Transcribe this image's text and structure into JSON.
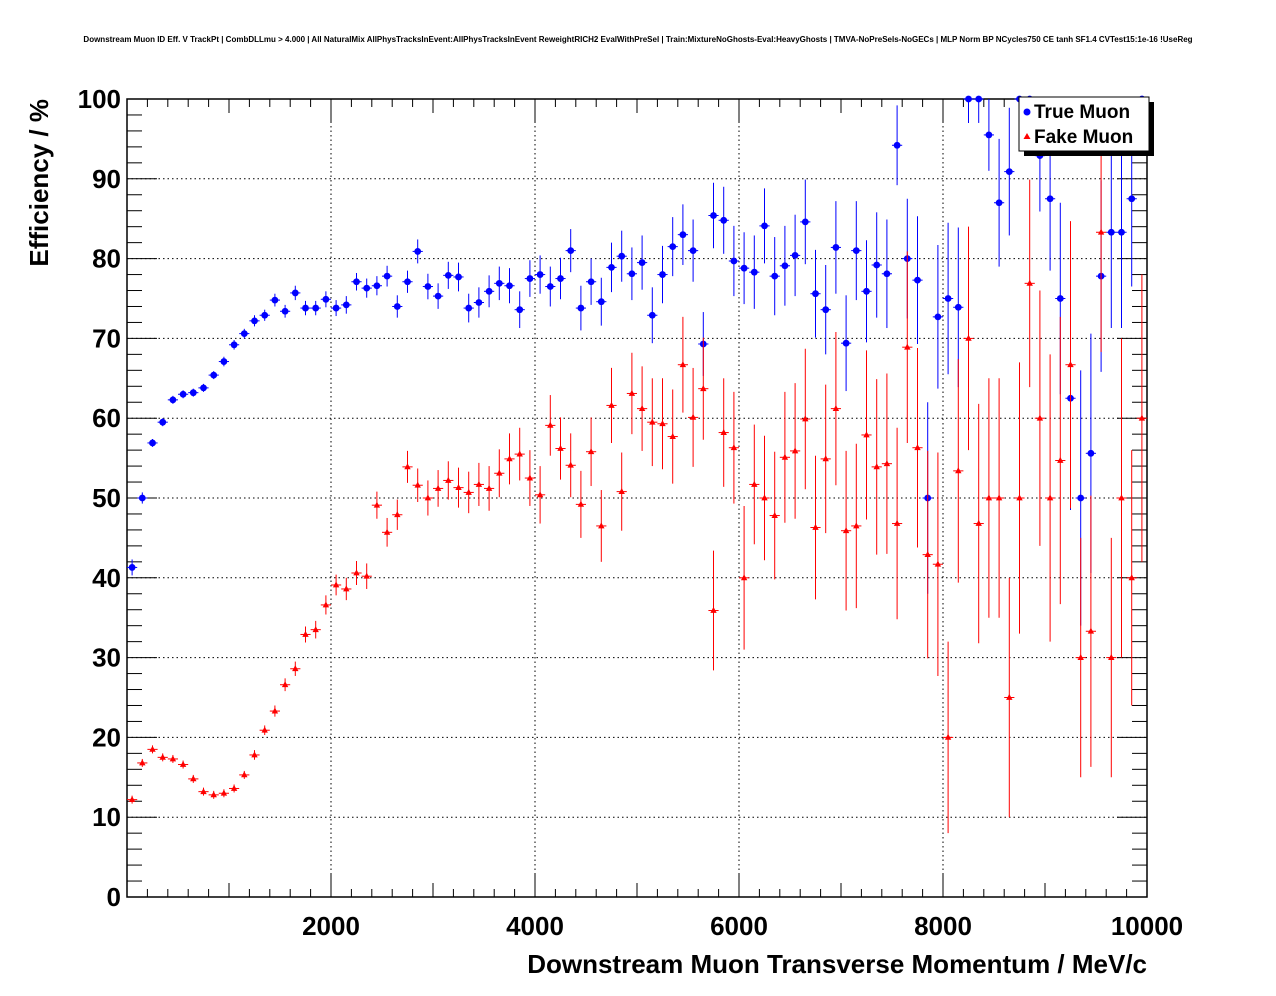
{
  "chart_data": {
    "type": "scatter",
    "title": "Downstream Muon ID Eff. V TrackPt | CombDLLmu > 4.000 | All NaturalMix AllPhysTracksInEvent:AllPhysTracksInEvent ReweightRICH2 EvalWithPreSel | Train:MixtureNoGhosts-Eval:HeavyGhosts | TMVA-NoPreSels-NoGECs | MLP Norm BP NCycles750 CE tanh SF1.4 CVTest15:1e-16 !UseReg",
    "xlabel": "Downstream Muon Transverse Momentum / MeV/c",
    "ylabel": "Efficiency / %",
    "xlim": [
      0,
      10000
    ],
    "ylim": [
      0,
      100
    ],
    "x_ticks": [
      "2000",
      "4000",
      "6000",
      "8000",
      "10000"
    ],
    "y_ticks": [
      "0",
      "10",
      "20",
      "30",
      "40",
      "50",
      "60",
      "70",
      "80",
      "90",
      "100"
    ],
    "grid": true,
    "legend_position": "top-right",
    "series": [
      {
        "name": "True Muon",
        "color": "#0000ff",
        "marker": "circle",
        "points": [
          [
            50,
            41.3,
            1.0
          ],
          [
            150,
            50.0,
            0.7
          ],
          [
            250,
            56.9,
            0.5
          ],
          [
            350,
            59.5,
            0.5
          ],
          [
            450,
            62.3,
            0.5
          ],
          [
            550,
            63.0,
            0.5
          ],
          [
            650,
            63.2,
            0.5
          ],
          [
            750,
            63.8,
            0.5
          ],
          [
            850,
            65.4,
            0.5
          ],
          [
            950,
            67.1,
            0.6
          ],
          [
            1050,
            69.2,
            0.6
          ],
          [
            1150,
            70.6,
            0.6
          ],
          [
            1250,
            72.2,
            0.7
          ],
          [
            1350,
            72.9,
            0.7
          ],
          [
            1450,
            74.8,
            0.8
          ],
          [
            1550,
            73.4,
            0.8
          ],
          [
            1650,
            75.7,
            0.9
          ],
          [
            1750,
            73.8,
            0.9
          ],
          [
            1850,
            73.8,
            0.9
          ],
          [
            1950,
            74.9,
            1.0
          ],
          [
            2050,
            73.8,
            1.0
          ],
          [
            2150,
            74.2,
            1.1
          ],
          [
            2250,
            77.1,
            1.1
          ],
          [
            2350,
            76.3,
            1.2
          ],
          [
            2450,
            76.6,
            1.2
          ],
          [
            2550,
            77.8,
            1.3
          ],
          [
            2650,
            74.0,
            1.4
          ],
          [
            2750,
            77.1,
            1.4
          ],
          [
            2850,
            80.9,
            1.5
          ],
          [
            2950,
            76.5,
            1.6
          ],
          [
            3050,
            75.3,
            1.6
          ],
          [
            3150,
            77.9,
            1.7
          ],
          [
            3250,
            77.7,
            1.8
          ],
          [
            3350,
            73.8,
            1.8
          ],
          [
            3450,
            74.5,
            1.9
          ],
          [
            3550,
            75.9,
            2.0
          ],
          [
            3650,
            76.9,
            2.1
          ],
          [
            3750,
            76.6,
            2.2
          ],
          [
            3850,
            73.6,
            2.3
          ],
          [
            3950,
            77.5,
            2.3
          ],
          [
            4050,
            78.0,
            2.4
          ],
          [
            4150,
            76.5,
            2.5
          ],
          [
            4250,
            77.5,
            2.6
          ],
          [
            4350,
            81.0,
            2.7
          ],
          [
            4450,
            73.8,
            2.8
          ],
          [
            4550,
            77.1,
            2.9
          ],
          [
            4650,
            74.6,
            3.0
          ],
          [
            4750,
            78.9,
            3.1
          ],
          [
            4850,
            80.3,
            3.2
          ],
          [
            4950,
            78.1,
            3.3
          ],
          [
            5050,
            79.5,
            3.4
          ],
          [
            5150,
            72.9,
            3.5
          ],
          [
            5250,
            78.0,
            3.6
          ],
          [
            5350,
            81.5,
            3.7
          ],
          [
            5450,
            83.0,
            3.8
          ],
          [
            5550,
            81.0,
            3.9
          ],
          [
            5650,
            69.3,
            4.0
          ],
          [
            5750,
            85.4,
            4.1
          ],
          [
            5850,
            84.8,
            4.2
          ],
          [
            5950,
            79.7,
            4.4
          ],
          [
            6050,
            78.8,
            4.5
          ],
          [
            6150,
            78.3,
            4.6
          ],
          [
            6250,
            84.1,
            4.7
          ],
          [
            6350,
            77.8,
            4.9
          ],
          [
            6450,
            79.1,
            5.0
          ],
          [
            6550,
            80.4,
            5.1
          ],
          [
            6650,
            84.6,
            5.3
          ],
          [
            6750,
            75.6,
            5.5
          ],
          [
            6850,
            73.6,
            5.6
          ],
          [
            6950,
            81.4,
            5.8
          ],
          [
            7050,
            69.4,
            6.0
          ],
          [
            7150,
            81.0,
            6.2
          ],
          [
            7250,
            75.9,
            6.4
          ],
          [
            7350,
            79.2,
            6.6
          ],
          [
            7450,
            78.1,
            6.8
          ],
          [
            7550,
            94.2,
            5.0
          ],
          [
            7650,
            80.0,
            7.5
          ],
          [
            7750,
            77.3,
            8.0
          ],
          [
            7850,
            50.0,
            12.0
          ],
          [
            7950,
            72.7,
            9.0
          ],
          [
            8050,
            75.0,
            9.5
          ],
          [
            8150,
            73.9,
            10.0
          ],
          [
            8250,
            100.0,
            3.0
          ],
          [
            8350,
            100.0,
            3.0
          ],
          [
            8450,
            95.5,
            4.5
          ],
          [
            8550,
            87.0,
            8.0
          ],
          [
            8650,
            90.9,
            8.0
          ],
          [
            8750,
            100.0,
            3.0
          ],
          [
            8850,
            100.0,
            3.0
          ],
          [
            8950,
            92.9,
            7.0
          ],
          [
            9050,
            87.5,
            9.0
          ],
          [
            9150,
            75.0,
            12.0
          ],
          [
            9250,
            62.5,
            14.0
          ],
          [
            9350,
            50.0,
            16.0
          ],
          [
            9450,
            55.6,
            15.0
          ],
          [
            9550,
            77.8,
            12.0
          ],
          [
            9650,
            83.3,
            12.0
          ],
          [
            9750,
            83.3,
            12.0
          ],
          [
            9850,
            87.5,
            11.0
          ],
          [
            9950,
            100.0,
            3.0
          ]
        ]
      },
      {
        "name": "Fake Muon",
        "color": "#ff0000",
        "marker": "triangle",
        "points": [
          [
            50,
            12.2,
            0.5
          ],
          [
            150,
            16.8,
            0.5
          ],
          [
            250,
            18.5,
            0.5
          ],
          [
            350,
            17.5,
            0.5
          ],
          [
            450,
            17.3,
            0.5
          ],
          [
            550,
            16.6,
            0.5
          ],
          [
            650,
            14.8,
            0.5
          ],
          [
            750,
            13.2,
            0.5
          ],
          [
            850,
            12.8,
            0.5
          ],
          [
            950,
            13.0,
            0.5
          ],
          [
            1050,
            13.6,
            0.5
          ],
          [
            1150,
            15.3,
            0.5
          ],
          [
            1250,
            17.8,
            0.6
          ],
          [
            1350,
            20.9,
            0.6
          ],
          [
            1450,
            23.3,
            0.7
          ],
          [
            1550,
            26.6,
            0.8
          ],
          [
            1650,
            28.6,
            0.9
          ],
          [
            1750,
            32.9,
            1.0
          ],
          [
            1850,
            33.5,
            1.1
          ],
          [
            1950,
            36.6,
            1.2
          ],
          [
            2050,
            39.1,
            1.3
          ],
          [
            2150,
            38.6,
            1.4
          ],
          [
            2250,
            40.6,
            1.5
          ],
          [
            2350,
            40.2,
            1.6
          ],
          [
            2450,
            49.1,
            1.7
          ],
          [
            2550,
            45.7,
            1.8
          ],
          [
            2650,
            47.9,
            1.9
          ],
          [
            2750,
            53.9,
            2.0
          ],
          [
            2850,
            51.6,
            2.1
          ],
          [
            2950,
            50.0,
            2.2
          ],
          [
            3050,
            51.2,
            2.3
          ],
          [
            3150,
            52.2,
            2.4
          ],
          [
            3250,
            51.3,
            2.5
          ],
          [
            3350,
            50.7,
            2.6
          ],
          [
            3450,
            51.7,
            2.7
          ],
          [
            3550,
            51.2,
            2.8
          ],
          [
            3650,
            53.1,
            3.0
          ],
          [
            3750,
            54.9,
            3.2
          ],
          [
            3850,
            55.5,
            3.3
          ],
          [
            3950,
            52.5,
            3.5
          ],
          [
            4050,
            50.4,
            3.6
          ],
          [
            4150,
            59.1,
            3.8
          ],
          [
            4250,
            56.2,
            3.9
          ],
          [
            4350,
            54.1,
            4.0
          ],
          [
            4450,
            49.2,
            4.2
          ],
          [
            4550,
            55.8,
            4.3
          ],
          [
            4650,
            46.5,
            4.5
          ],
          [
            4750,
            61.6,
            4.7
          ],
          [
            4850,
            50.8,
            4.9
          ],
          [
            4950,
            63.1,
            5.1
          ],
          [
            5050,
            61.2,
            5.3
          ],
          [
            5150,
            59.5,
            5.5
          ],
          [
            5250,
            59.3,
            5.7
          ],
          [
            5350,
            57.7,
            5.9
          ],
          [
            5450,
            66.7,
            6.0
          ],
          [
            5550,
            60.1,
            6.2
          ],
          [
            5650,
            63.7,
            6.4
          ],
          [
            5750,
            35.9,
            7.5
          ],
          [
            5850,
            58.2,
            6.8
          ],
          [
            5950,
            56.3,
            7.0
          ],
          [
            6050,
            40.0,
            9.0
          ],
          [
            6150,
            51.7,
            7.5
          ],
          [
            6250,
            50.0,
            7.8
          ],
          [
            6350,
            47.8,
            8.0
          ],
          [
            6450,
            55.1,
            8.2
          ],
          [
            6550,
            55.9,
            8.5
          ],
          [
            6650,
            59.9,
            8.8
          ],
          [
            6750,
            46.3,
            9.0
          ],
          [
            6850,
            54.9,
            9.3
          ],
          [
            6950,
            61.2,
            9.6
          ],
          [
            7050,
            45.9,
            10.0
          ],
          [
            7150,
            46.5,
            10.3
          ],
          [
            7250,
            57.9,
            10.6
          ],
          [
            7350,
            53.9,
            11.0
          ],
          [
            7450,
            54.3,
            11.3
          ],
          [
            7550,
            46.8,
            12.0
          ],
          [
            7650,
            68.9,
            12.0
          ],
          [
            7750,
            56.3,
            12.5
          ],
          [
            7850,
            42.9,
            13.0
          ],
          [
            7950,
            41.7,
            14.0
          ],
          [
            8050,
            20.0,
            12.0
          ],
          [
            8150,
            53.4,
            14.0
          ],
          [
            8250,
            70.0,
            14.0
          ],
          [
            8350,
            46.8,
            15.0
          ],
          [
            8450,
            50.0,
            15.0
          ],
          [
            8550,
            50.0,
            15.0
          ],
          [
            8650,
            25.0,
            15.0
          ],
          [
            8750,
            50.0,
            17.0
          ],
          [
            8850,
            76.9,
            13.0
          ],
          [
            8950,
            60.0,
            16.0
          ],
          [
            9050,
            50.0,
            18.0
          ],
          [
            9150,
            54.7,
            18.0
          ],
          [
            9250,
            66.7,
            18.0
          ],
          [
            9350,
            30.0,
            15.0
          ],
          [
            9450,
            33.3,
            17.0
          ],
          [
            9550,
            83.3,
            15.0
          ],
          [
            9650,
            30.0,
            15.0
          ],
          [
            9750,
            50.0,
            20.0
          ],
          [
            9850,
            40.0,
            16.0
          ],
          [
            9950,
            60.0,
            18.0
          ]
        ]
      }
    ]
  }
}
